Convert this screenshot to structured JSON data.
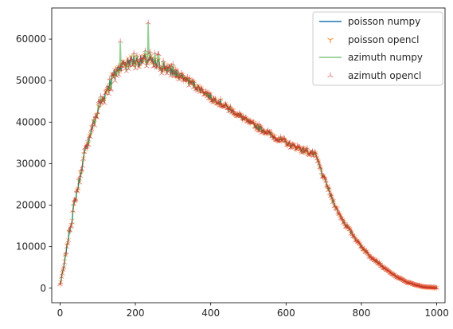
{
  "chart_data": {
    "type": "line",
    "title": "",
    "xlabel": "",
    "ylabel": "",
    "xlim": [
      -22,
      1022
    ],
    "ylim": [
      -3500,
      67500
    ],
    "grid": false,
    "legend_placement": "top-right",
    "x_ticks": [
      0,
      200,
      400,
      600,
      800,
      1000
    ],
    "x_tick_labels": [
      "0",
      "200",
      "400",
      "600",
      "800",
      "1000"
    ],
    "y_ticks": [
      0,
      10000,
      20000,
      30000,
      40000,
      50000,
      60000
    ],
    "y_tick_labels": [
      "0",
      "10000",
      "20000",
      "30000",
      "40000",
      "50000",
      "60000"
    ],
    "series": [
      {
        "name": "poisson numpy",
        "style": "line",
        "color": "#1f77b4"
      },
      {
        "name": "poisson opencl",
        "style": "marker-tri-down",
        "color": "#ff7f0e"
      },
      {
        "name": "azimuth numpy",
        "style": "line",
        "color": "#2ca02c"
      },
      {
        "name": "azimuth opencl",
        "style": "marker-tri-left",
        "color": "#d62728"
      }
    ],
    "x": [
      0,
      10,
      20,
      30,
      40,
      50,
      60,
      70,
      80,
      90,
      100,
      110,
      120,
      130,
      140,
      150,
      160,
      170,
      180,
      190,
      200,
      210,
      220,
      230,
      240,
      250,
      260,
      270,
      280,
      290,
      300,
      320,
      340,
      360,
      380,
      400,
      420,
      440,
      460,
      480,
      500,
      520,
      540,
      560,
      580,
      600,
      620,
      640,
      660,
      680,
      690,
      700,
      710,
      720,
      740,
      760,
      780,
      800,
      820,
      840,
      860,
      880,
      900,
      920,
      940,
      960,
      980,
      1000
    ],
    "values": [
      800,
      5000,
      11000,
      16000,
      21000,
      25500,
      30000,
      34000,
      37000,
      40000,
      42500,
      45000,
      47000,
      49000,
      51000,
      52500,
      53500,
      54000,
      54500,
      55000,
      54800,
      54600,
      54800,
      55000,
      54600,
      54300,
      54000,
      53600,
      53200,
      52700,
      52200,
      51000,
      50000,
      48800,
      47500,
      46000,
      45000,
      43800,
      42500,
      41300,
      40000,
      39000,
      38000,
      37000,
      36000,
      35000,
      34200,
      33500,
      32800,
      31800,
      29000,
      26500,
      24500,
      22000,
      18000,
      15000,
      12500,
      10000,
      8000,
      6500,
      4800,
      3500,
      2400,
      1500,
      900,
      450,
      200,
      100
    ]
  }
}
